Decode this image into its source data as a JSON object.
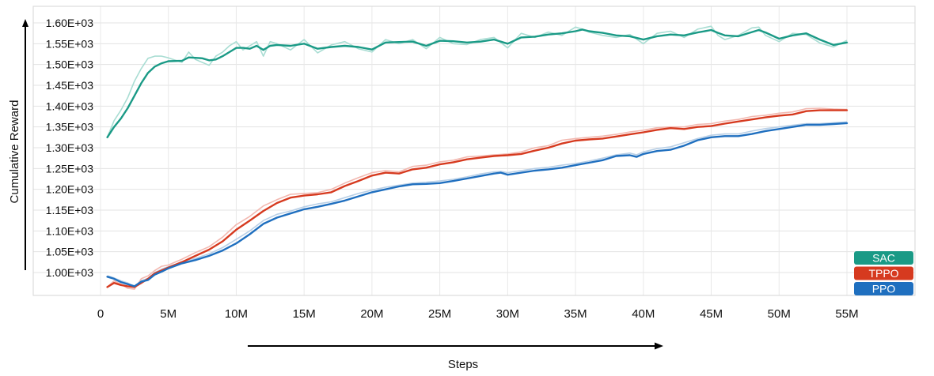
{
  "chart_data": {
    "type": "line",
    "xlabel": "Steps",
    "ylabel": "Cumulative Reward",
    "xlim": [
      0,
      55
    ],
    "ylim": [
      960,
      1625
    ],
    "grid": true,
    "legend_position": "bottom-right",
    "x_ticks": [
      {
        "value": 0,
        "label": "0"
      },
      {
        "value": 5,
        "label": "5M"
      },
      {
        "value": 10,
        "label": "10M"
      },
      {
        "value": 15,
        "label": "15M"
      },
      {
        "value": 20,
        "label": "20M"
      },
      {
        "value": 25,
        "label": "25M"
      },
      {
        "value": 30,
        "label": "30M"
      },
      {
        "value": 35,
        "label": "35M"
      },
      {
        "value": 40,
        "label": "40M"
      },
      {
        "value": 45,
        "label": "45M"
      },
      {
        "value": 50,
        "label": "50M"
      },
      {
        "value": 55,
        "label": "55M"
      }
    ],
    "y_ticks": [
      {
        "value": 1000,
        "label": "1.00E+03"
      },
      {
        "value": 1050,
        "label": "1.05E+03"
      },
      {
        "value": 1100,
        "label": "1.10E+03"
      },
      {
        "value": 1150,
        "label": "1.15E+03"
      },
      {
        "value": 1200,
        "label": "1.20E+03"
      },
      {
        "value": 1250,
        "label": "1.25E+03"
      },
      {
        "value": 1300,
        "label": "1.30E+03"
      },
      {
        "value": 1350,
        "label": "1.35E+03"
      },
      {
        "value": 1400,
        "label": "1.40E+03"
      },
      {
        "value": 1450,
        "label": "1.45E+03"
      },
      {
        "value": 1500,
        "label": "1.50E+03"
      },
      {
        "value": 1550,
        "label": "1.55E+03"
      },
      {
        "value": 1600,
        "label": "1.60E+03"
      }
    ],
    "series": [
      {
        "name": "SAC",
        "color": "#1a9a86",
        "raw_color": "#a9ddd3",
        "x": [
          0.5,
          1,
          1.5,
          2,
          2.5,
          3,
          3.5,
          4,
          4.5,
          5,
          6,
          6.5,
          7,
          7.5,
          8,
          8.5,
          9,
          9.5,
          10,
          10.5,
          11,
          11.5,
          12,
          12.5,
          13,
          14,
          15,
          16,
          17,
          18,
          19,
          20,
          21,
          22,
          23,
          24,
          25,
          26,
          27,
          28,
          29,
          30,
          31,
          32,
          33,
          34,
          35,
          35.5,
          36,
          37,
          38,
          39,
          40,
          41,
          42,
          43,
          44,
          45,
          45.5,
          46,
          47,
          48,
          48.5,
          49,
          50,
          51,
          52,
          53,
          54,
          55
        ],
        "y": [
          1325,
          1350,
          1370,
          1395,
          1425,
          1455,
          1480,
          1495,
          1503,
          1508,
          1509,
          1517,
          1516,
          1515,
          1510,
          1512,
          1520,
          1530,
          1540,
          1540,
          1538,
          1545,
          1535,
          1545,
          1547,
          1545,
          1550,
          1538,
          1542,
          1545,
          1542,
          1536,
          1553,
          1554,
          1555,
          1545,
          1557,
          1556,
          1553,
          1555,
          1560,
          1550,
          1565,
          1567,
          1572,
          1575,
          1580,
          1584,
          1580,
          1576,
          1570,
          1568,
          1560,
          1568,
          1572,
          1570,
          1577,
          1583,
          1576,
          1570,
          1568,
          1578,
          1583,
          1577,
          1562,
          1570,
          1575,
          1560,
          1547,
          1553
        ],
        "raw_y": [
          1325,
          1365,
          1390,
          1420,
          1460,
          1490,
          1515,
          1520,
          1520,
          1516,
          1505,
          1530,
          1512,
          1505,
          1498,
          1520,
          1530,
          1545,
          1555,
          1535,
          1545,
          1555,
          1520,
          1555,
          1550,
          1535,
          1560,
          1528,
          1547,
          1555,
          1538,
          1530,
          1560,
          1550,
          1560,
          1538,
          1565,
          1550,
          1548,
          1560,
          1565,
          1540,
          1575,
          1565,
          1578,
          1570,
          1590,
          1585,
          1578,
          1570,
          1565,
          1572,
          1550,
          1575,
          1580,
          1565,
          1585,
          1592,
          1570,
          1560,
          1570,
          1588,
          1590,
          1570,
          1555,
          1575,
          1572,
          1552,
          1542,
          1558
        ]
      },
      {
        "name": "TPPO",
        "color": "#d63a1f",
        "raw_color": "#f2b8b0",
        "x": [
          0.5,
          1,
          1.5,
          2,
          2.5,
          3,
          3.5,
          4,
          4.5,
          5,
          6,
          7,
          8,
          9,
          10,
          11,
          12,
          13,
          14,
          15,
          16,
          17,
          18,
          19,
          20,
          21,
          22,
          23,
          24,
          25,
          26,
          27,
          28,
          29,
          30,
          31,
          32,
          33,
          34,
          35,
          36,
          37,
          38,
          39,
          40,
          41,
          42,
          43,
          44,
          45,
          46,
          47,
          48,
          49,
          50,
          51,
          52,
          53,
          54,
          55
        ],
        "y": [
          965,
          975,
          970,
          967,
          965,
          975,
          985,
          998,
          1005,
          1012,
          1025,
          1040,
          1055,
          1075,
          1103,
          1125,
          1148,
          1167,
          1180,
          1185,
          1188,
          1193,
          1208,
          1220,
          1233,
          1240,
          1238,
          1248,
          1252,
          1260,
          1265,
          1272,
          1276,
          1280,
          1282,
          1285,
          1293,
          1300,
          1310,
          1317,
          1320,
          1322,
          1327,
          1332,
          1337,
          1343,
          1347,
          1345,
          1350,
          1352,
          1358,
          1363,
          1368,
          1373,
          1377,
          1380,
          1388,
          1390,
          1390,
          1390
        ],
        "raw_y": [
          965,
          980,
          972,
          962,
          960,
          985,
          992,
          1005,
          1015,
          1018,
          1032,
          1048,
          1062,
          1085,
          1115,
          1135,
          1160,
          1175,
          1188,
          1190,
          1192,
          1200,
          1215,
          1228,
          1240,
          1245,
          1242,
          1255,
          1258,
          1266,
          1270,
          1278,
          1280,
          1283,
          1285,
          1290,
          1300,
          1305,
          1318,
          1322,
          1325,
          1328,
          1332,
          1338,
          1342,
          1348,
          1350,
          1350,
          1356,
          1358,
          1364,
          1368,
          1375,
          1378,
          1383,
          1386,
          1394,
          1395,
          1393,
          1392
        ]
      },
      {
        "name": "PPO",
        "color": "#1f6fbf",
        "raw_color": "#b8cfe6",
        "x": [
          0.5,
          1,
          1.5,
          2,
          2.5,
          3,
          3.5,
          4,
          4.5,
          5,
          6,
          7,
          8,
          9,
          10,
          11,
          12,
          13,
          14,
          15,
          16,
          17,
          18,
          19,
          20,
          21,
          22,
          23,
          24,
          25,
          26,
          27,
          28,
          29,
          29.5,
          30,
          31,
          32,
          33,
          34,
          35,
          36,
          37,
          38,
          39,
          39.5,
          40,
          41,
          42,
          43,
          44,
          45,
          46,
          47,
          48,
          49,
          50,
          51,
          52,
          53,
          54,
          55
        ],
        "y": [
          990,
          985,
          977,
          972,
          967,
          978,
          982,
          995,
          1002,
          1010,
          1022,
          1030,
          1040,
          1053,
          1070,
          1092,
          1117,
          1132,
          1142,
          1152,
          1158,
          1165,
          1173,
          1183,
          1193,
          1200,
          1207,
          1212,
          1213,
          1215,
          1220,
          1226,
          1232,
          1238,
          1240,
          1235,
          1240,
          1245,
          1248,
          1252,
          1258,
          1264,
          1270,
          1280,
          1282,
          1278,
          1285,
          1292,
          1295,
          1305,
          1318,
          1325,
          1328,
          1328,
          1333,
          1340,
          1345,
          1350,
          1355,
          1355,
          1357,
          1359
        ],
        "raw_y": [
          992,
          987,
          980,
          975,
          965,
          980,
          986,
          1000,
          1008,
          1014,
          1025,
          1034,
          1045,
          1060,
          1080,
          1100,
          1125,
          1140,
          1148,
          1158,
          1165,
          1170,
          1180,
          1190,
          1198,
          1205,
          1210,
          1215,
          1217,
          1220,
          1224,
          1230,
          1237,
          1242,
          1243,
          1240,
          1245,
          1250,
          1253,
          1258,
          1262,
          1268,
          1275,
          1283,
          1287,
          1283,
          1290,
          1298,
          1302,
          1312,
          1322,
          1330,
          1333,
          1333,
          1340,
          1346,
          1350,
          1354,
          1358,
          1358,
          1360,
          1362
        ]
      }
    ]
  }
}
